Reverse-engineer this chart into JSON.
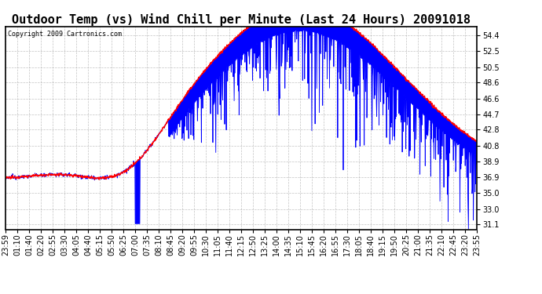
{
  "title": "Outdoor Temp (vs) Wind Chill per Minute (Last 24 Hours) 20091018",
  "copyright": "Copyright 2009 Cartronics.com",
  "yticks": [
    31.1,
    33.0,
    35.0,
    36.9,
    38.9,
    40.8,
    42.8,
    44.7,
    46.6,
    48.6,
    50.5,
    52.5,
    54.4
  ],
  "ylim": [
    30.5,
    55.5
  ],
  "x_labels": [
    "23:59",
    "01:10",
    "01:40",
    "02:20",
    "02:55",
    "03:30",
    "04:05",
    "04:40",
    "05:15",
    "05:50",
    "06:25",
    "07:00",
    "07:35",
    "08:10",
    "08:45",
    "09:20",
    "09:55",
    "10:30",
    "11:05",
    "11:40",
    "12:15",
    "12:50",
    "13:25",
    "14:00",
    "14:35",
    "15:10",
    "15:45",
    "16:20",
    "16:55",
    "17:30",
    "18:05",
    "18:40",
    "19:15",
    "19:50",
    "20:25",
    "21:00",
    "21:35",
    "22:10",
    "22:45",
    "23:20",
    "23:55"
  ],
  "temp_color": "#ff0000",
  "windchill_color": "#0000ff",
  "background_color": "#ffffff",
  "grid_color": "#aaaaaa",
  "title_fontsize": 11,
  "tick_fontsize": 7
}
